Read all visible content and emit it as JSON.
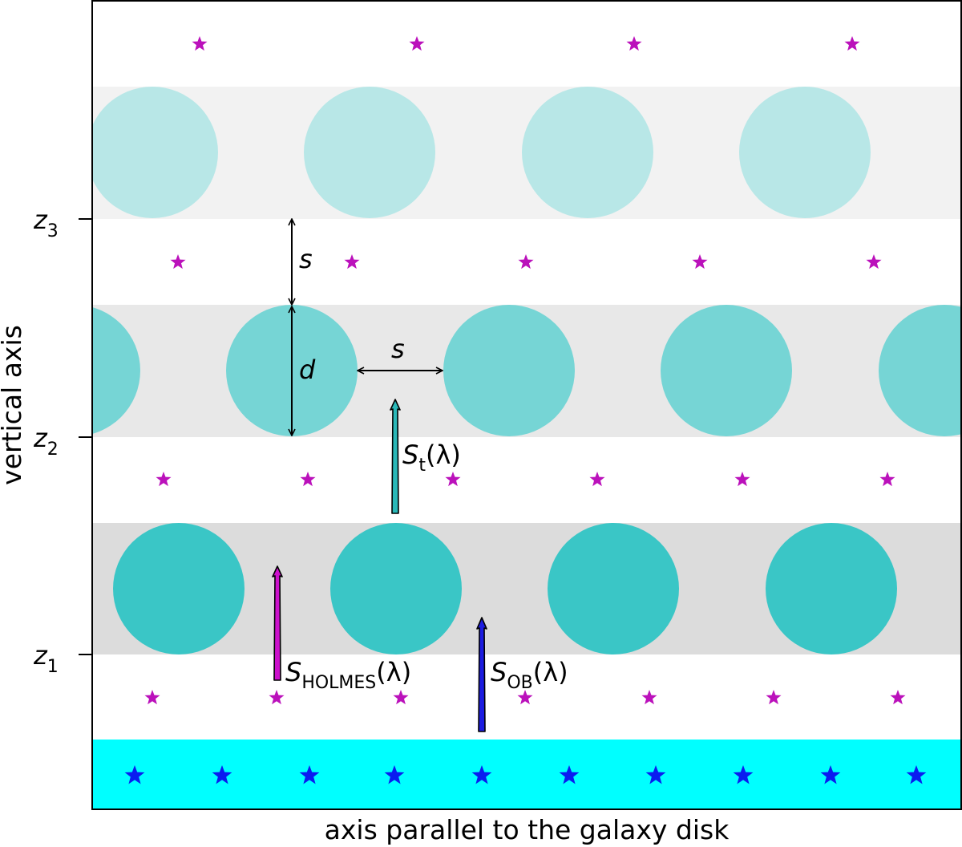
{
  "axes": {
    "xlabel": "axis parallel to the galaxy disk",
    "ylabel": "vertical axis",
    "yticks": [
      {
        "name": "z",
        "sub": "1"
      },
      {
        "name": "z",
        "sub": "2"
      },
      {
        "name": "z",
        "sub": "3"
      }
    ]
  },
  "labels": {
    "s_vertical": "s",
    "s_horizontal": "s",
    "d": "d",
    "flux_t": {
      "main": "S",
      "sub": "t",
      "arg": "(λ)"
    },
    "flux_holmes": {
      "main": "S",
      "sub": "HOLMES",
      "arg": "(λ)"
    },
    "flux_ob": {
      "main": "S",
      "sub": "OB",
      "arg": "(λ)"
    }
  },
  "colors": {
    "band_1": "#dcdcdc",
    "band_2": "#e8e8e8",
    "band_3": "#f2f2f2",
    "cloud_1": "#3ac6c6",
    "cloud_2": "#76d5d5",
    "cloud_3": "#b8e7e7",
    "ob_layer": "#00ffff",
    "ob_star": "#0a1cf0",
    "holmes_star": "#bb11bb",
    "arrow_t": "#2ab8b8",
    "arrow_holmes": "#cc11cc",
    "arrow_ob": "#1c1ce0"
  },
  "icons": {
    "small_star": "magenta-star-icon",
    "big_star": "blue-star-icon"
  },
  "rows": {
    "holmes_star_rows": [
      {
        "count": 4
      },
      {
        "count": 5
      },
      {
        "count": 6
      },
      {
        "count": 7
      }
    ],
    "cloud_rows": [
      {
        "count": 4,
        "tone": "cloud_1"
      },
      {
        "count": 5,
        "tone": "cloud_2"
      },
      {
        "count": 4,
        "tone": "cloud_3"
      }
    ],
    "ob_star_row": {
      "count": 10
    }
  }
}
